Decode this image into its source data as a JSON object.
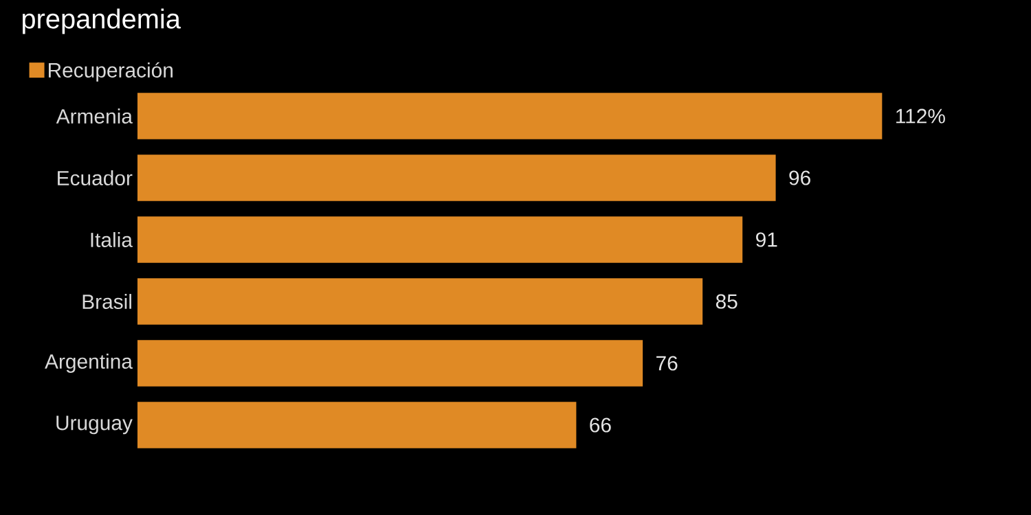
{
  "chart_data": {
    "type": "bar",
    "orientation": "horizontal",
    "title": "prepandemia",
    "categories": [
      "Armenia",
      "Ecuador",
      "Italia",
      "Brasil",
      "Argentina",
      "Uruguay"
    ],
    "series": [
      {
        "name": "Recuperación",
        "color": "#e08a25",
        "values": [
          112,
          96,
          91,
          85,
          76,
          66
        ],
        "value_labels": [
          "112%",
          "96",
          "91",
          "85",
          "76",
          "66"
        ]
      }
    ],
    "legend": "top left"
  }
}
